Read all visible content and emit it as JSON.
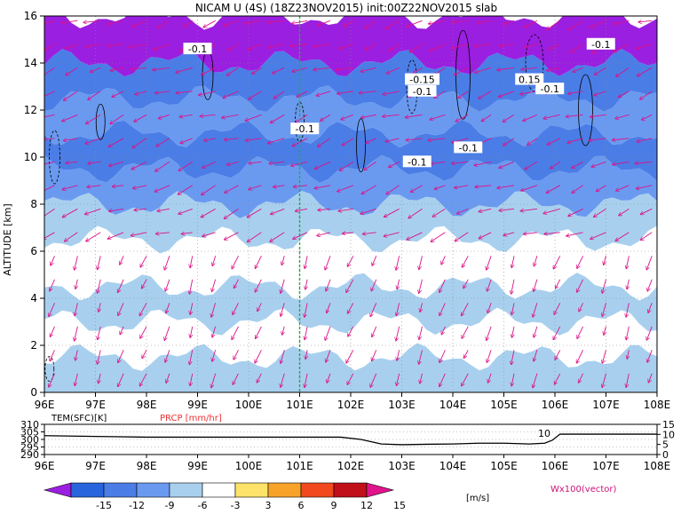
{
  "chart_data": [
    {
      "type": "heatmap",
      "title": "NICAM U (4S) (18Z23NOV2015) init:00Z22NOV2015 slab",
      "ylabel": "ALTITUDE [km]",
      "x_ticks": [
        "96E",
        "97E",
        "98E",
        "99E",
        "100E",
        "101E",
        "102E",
        "103E",
        "104E",
        "105E",
        "106E",
        "107E",
        "108E"
      ],
      "x_range": [
        96,
        108
      ],
      "y_ticks": [
        "0",
        "2",
        "4",
        "6",
        "8",
        "10",
        "12",
        "14",
        "16"
      ],
      "y_range": [
        0,
        16
      ],
      "grid": "on",
      "marker_longitude": 101,
      "layers": [
        {
          "z0": 0,
          "z1": 1.5,
          "level": 1
        },
        {
          "z0": 1.5,
          "z1": 3.0,
          "level": 0
        },
        {
          "z0": 3.0,
          "z1": 4.5,
          "level": 1
        },
        {
          "z0": 4.5,
          "z1": 6.5,
          "level": 0
        },
        {
          "z0": 6.5,
          "z1": 8.0,
          "level": 1
        },
        {
          "z0": 8.0,
          "z1": 9.5,
          "level": 2
        },
        {
          "z0": 9.5,
          "z1": 11.0,
          "level": 3
        },
        {
          "z0": 11.0,
          "z1": 12.5,
          "level": 2
        },
        {
          "z0": 12.5,
          "z1": 14.0,
          "level": 3
        },
        {
          "z0": 14.0,
          "z1": 16.0,
          "level": 4
        }
      ],
      "contour_labels": [
        {
          "text": "-0.1",
          "lon": 99.0,
          "alt": 14.6
        },
        {
          "text": "-0.15",
          "lon": 103.4,
          "alt": 13.3
        },
        {
          "text": "-0.1",
          "lon": 103.4,
          "alt": 12.8
        },
        {
          "text": "-0.1",
          "lon": 101.1,
          "alt": 11.2
        },
        {
          "text": "-0.1",
          "lon": 104.3,
          "alt": 10.4
        },
        {
          "text": "-0.1",
          "lon": 103.3,
          "alt": 9.8
        },
        {
          "text": "0.15",
          "lon": 105.5,
          "alt": 13.3
        },
        {
          "text": "-0.1",
          "lon": 105.9,
          "alt": 12.9
        },
        {
          "text": "-0.1",
          "lon": 106.9,
          "alt": 14.8
        }
      ]
    },
    {
      "type": "line",
      "ylabel_left": "TEM(SFC)[K]",
      "ylabel_right": "PRCP [mm/hr]",
      "x_ticks": [
        "96E",
        "97E",
        "98E",
        "99E",
        "100E",
        "101E",
        "102E",
        "103E",
        "104E",
        "105E",
        "106E",
        "107E",
        "108E"
      ],
      "x_range": [
        96,
        108
      ],
      "y_left_ticks": [
        "310",
        "305",
        "300",
        "295",
        "290"
      ],
      "y_left_range": [
        290,
        310
      ],
      "y_right_ticks": [
        "15",
        "10",
        "5",
        "0"
      ],
      "y_right_range": [
        0,
        15
      ],
      "series": [
        {
          "x": [
            96.0,
            97.0,
            98.0,
            99.0,
            100.0,
            101.0,
            101.8,
            102.2,
            102.6,
            103.0,
            103.5,
            104.0,
            104.5,
            105.0,
            105.5,
            105.8,
            105.95,
            106.1,
            107.0,
            108.0
          ],
          "y": [
            302.5,
            302.0,
            301.5,
            301.5,
            301.5,
            301.5,
            301.5,
            300.0,
            297.0,
            296.5,
            296.8,
            297.0,
            297.5,
            297.5,
            297.0,
            297.5,
            299.5,
            303.5,
            303.5,
            303.5
          ]
        }
      ],
      "annotation": "10"
    }
  ],
  "colorbar": {
    "labels": [
      "-15",
      "-12",
      "-9",
      "-6",
      "-3",
      "3",
      "6",
      "9",
      "12",
      "15"
    ],
    "unit": "[m/s]",
    "colors": [
      "#9a1fe0",
      "#2864dc",
      "#4b7de6",
      "#6a9af0",
      "#a8d0ee",
      "#ffffff",
      "#fde36a",
      "#f7a32a",
      "#f04a1e",
      "#c0101a",
      "#e0148c"
    ]
  },
  "vector_label": "Wx100(vector)",
  "colors": {
    "vector": "#dd1188",
    "marker_line": "#22aa44",
    "precip_line": "#ee3333"
  }
}
